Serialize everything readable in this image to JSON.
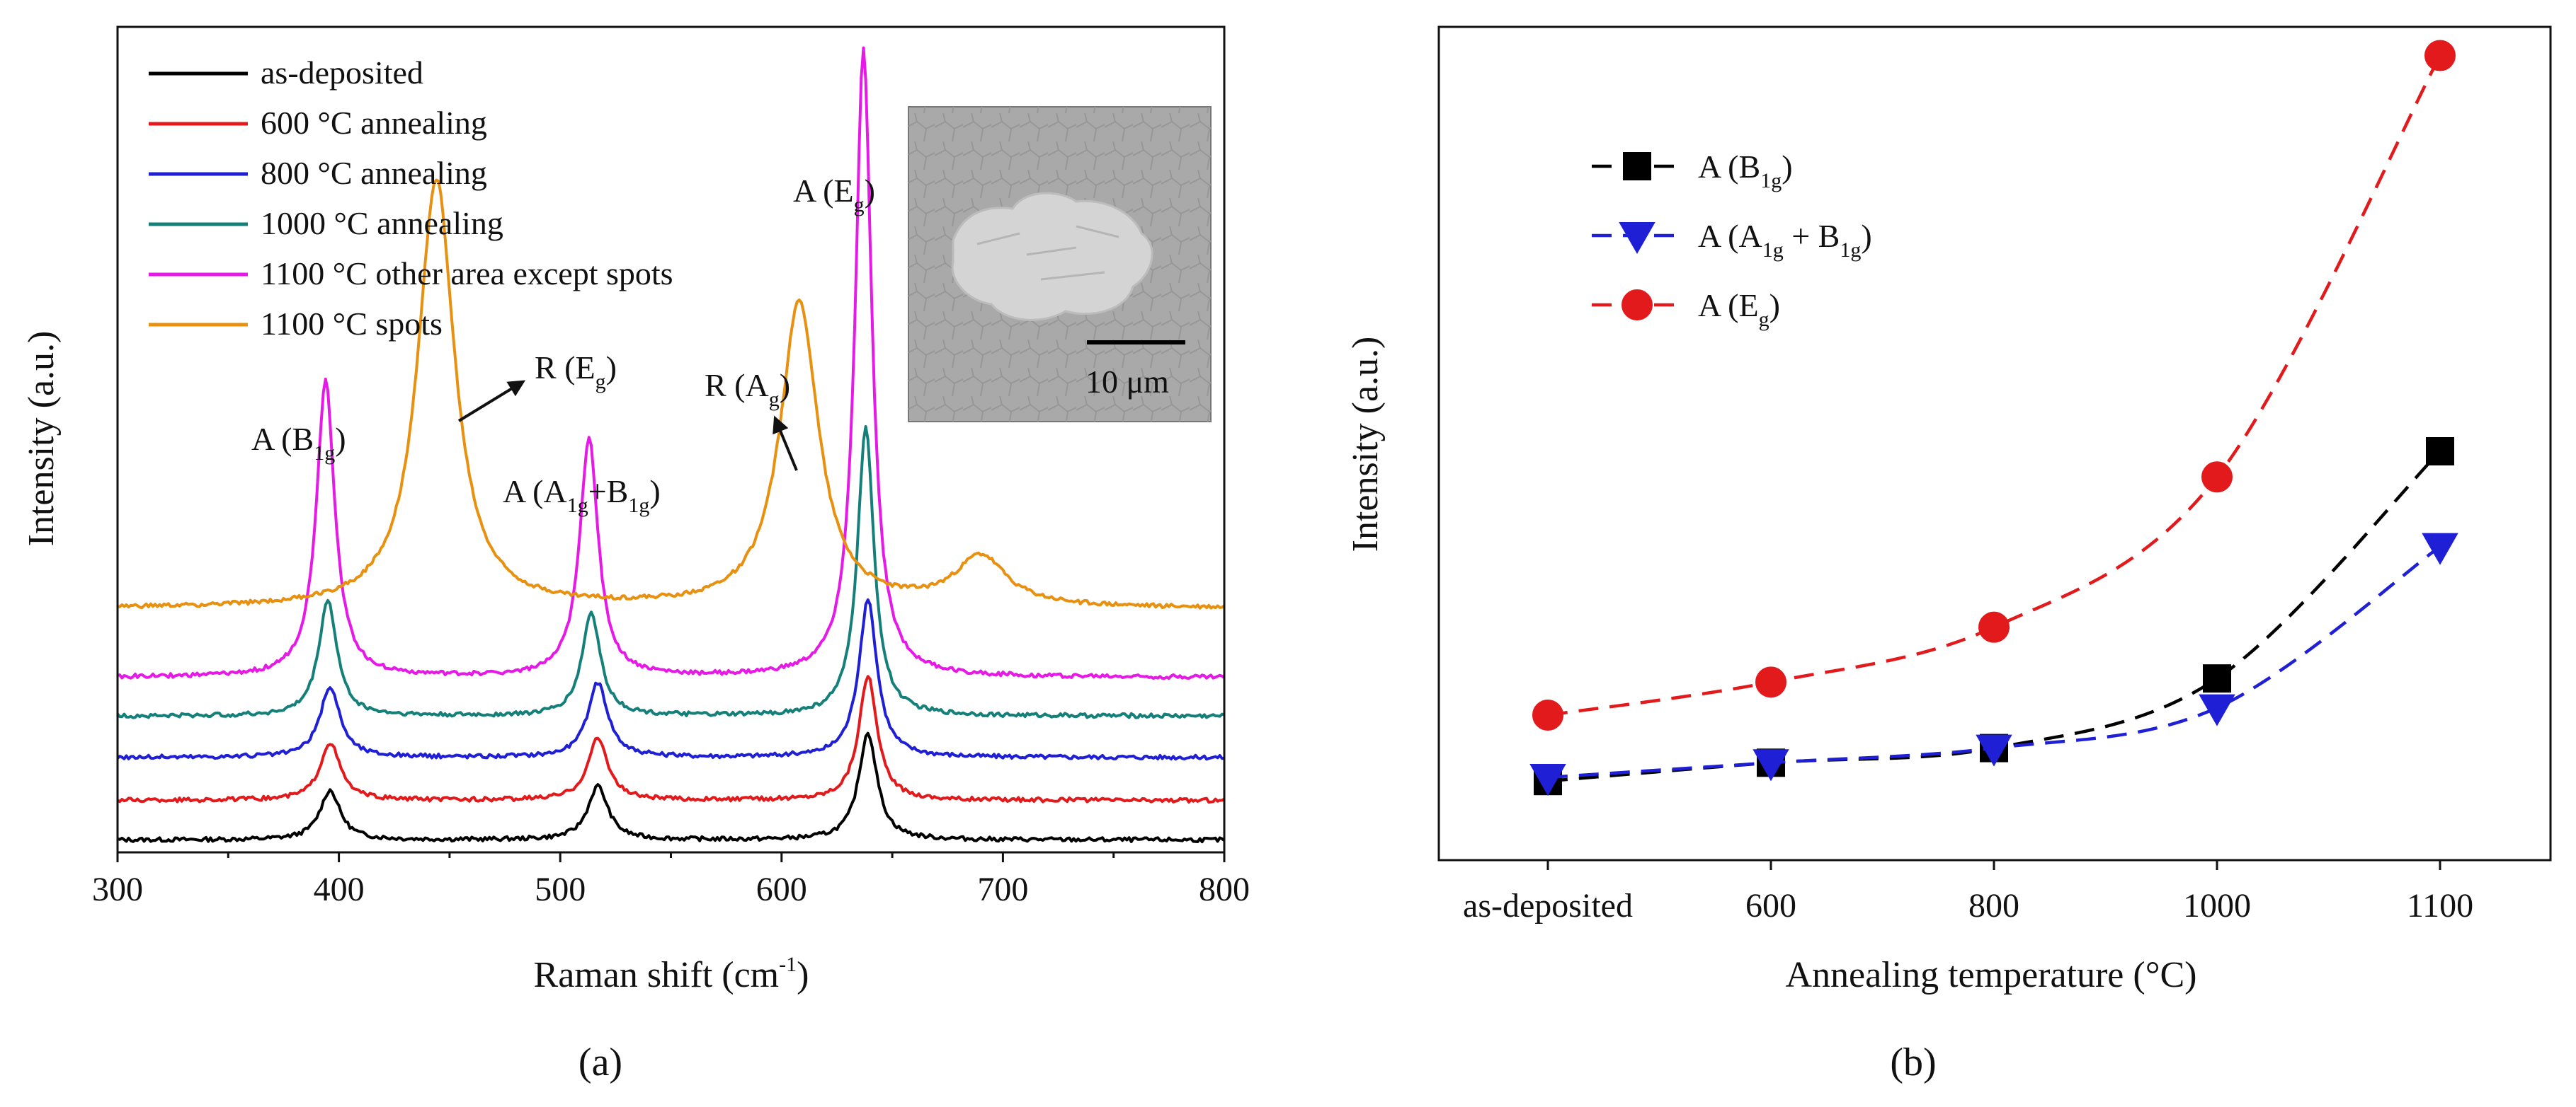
{
  "chart_data": [
    {
      "type": "line",
      "panel_label": "(a)",
      "xlabel": "Raman shift (cm",
      "xlabel_sup": "-1",
      "xlabel_end": ")",
      "ylabel": "Intensity (a.u.)",
      "xlim": [
        300,
        800
      ],
      "ylim": [
        0,
        100
      ],
      "xticks": [
        "300",
        "400",
        "500",
        "600",
        "700",
        "800"
      ],
      "legend_position": "top-left",
      "series": [
        {
          "name": "as-deposited",
          "color": "#000000",
          "baseline": 1.5,
          "peaks": [
            [
              396,
              6,
              11
            ],
            [
              517,
              6.5,
              11
            ],
            [
              639,
              13,
              10
            ]
          ]
        },
        {
          "name": "600 °C annealing",
          "color": "#e31a1c",
          "baseline": 6.3,
          "peaks": [
            [
              396,
              7,
              11
            ],
            [
              517,
              7.5,
              11
            ],
            [
              639,
              15,
              10
            ]
          ]
        },
        {
          "name": "800 °C annealing",
          "color": "#1f1fd6",
          "baseline": 11.5,
          "peaks": [
            [
              396,
              8.5,
              11
            ],
            [
              517,
              9,
              11
            ],
            [
              639,
              19,
              10
            ]
          ]
        },
        {
          "name": "1000 °C annealing",
          "color": "#15807a",
          "baseline": 16.5,
          "peaks": [
            [
              395,
              14,
              10
            ],
            [
              514,
              12.5,
              10
            ],
            [
              638,
              35,
              9
            ]
          ]
        },
        {
          "name": "1100 °C other area except spots",
          "color": "#e619e6",
          "baseline": 21.2,
          "peaks": [
            [
              394,
              36,
              10
            ],
            [
              513,
              29,
              10
            ],
            [
              637,
              76,
              9
            ]
          ]
        },
        {
          "name": "1100 °C spots",
          "color": "#e8900f",
          "baseline": 29.5,
          "peaks": [
            [
              444,
              52,
              20
            ],
            [
              608,
              37,
              21
            ],
            [
              690,
              6,
              28
            ]
          ]
        }
      ],
      "annotations": [
        {
          "main": "A (B",
          "sub": "1g",
          "close": ")"
        },
        {
          "main": "R (E",
          "sub": "g",
          "close": ")"
        },
        {
          "main": "A (A",
          "sub": "1g",
          "mid": "+B",
          "sub2": "1g",
          "close": ")"
        },
        {
          "main": "R (A",
          "sub": "g",
          "close": ")"
        },
        {
          "main": "A (E",
          "sub": "g",
          "close": ")"
        }
      ],
      "inset": {
        "scale_label": "10 μm"
      }
    },
    {
      "type": "line",
      "panel_label": "(b)",
      "xlabel": "Annealing temperature (°C)",
      "ylabel": "Intensity (a.u.)",
      "categories": [
        "as-deposited",
        "600",
        "800",
        "1000",
        "1100"
      ],
      "ylim": [
        0,
        100
      ],
      "legend_position": "top-left",
      "series": [
        {
          "name": "A (B1g)",
          "label_main": "A (B",
          "label_sub": "1g",
          "label_close": ")",
          "marker": "square",
          "color": "#000000",
          "values": [
            5,
            7.5,
            9.5,
            19,
            50
          ]
        },
        {
          "name": "A (A1g + B1g)",
          "label_main": "A (A",
          "label_sub": "1g",
          "label_mid": " + B",
          "label_sub2": "1g",
          "label_close": ")",
          "marker": "triangle-down",
          "color": "#1f1fd6",
          "values": [
            5.5,
            7.5,
            9.5,
            15,
            37
          ]
        },
        {
          "name": "A (Eg)",
          "label_main": "A (E",
          "label_sub": "g",
          "label_close": ")",
          "marker": "circle",
          "color": "#e31a1c",
          "values": [
            14,
            18.5,
            26,
            46.5,
            104
          ]
        }
      ]
    }
  ]
}
